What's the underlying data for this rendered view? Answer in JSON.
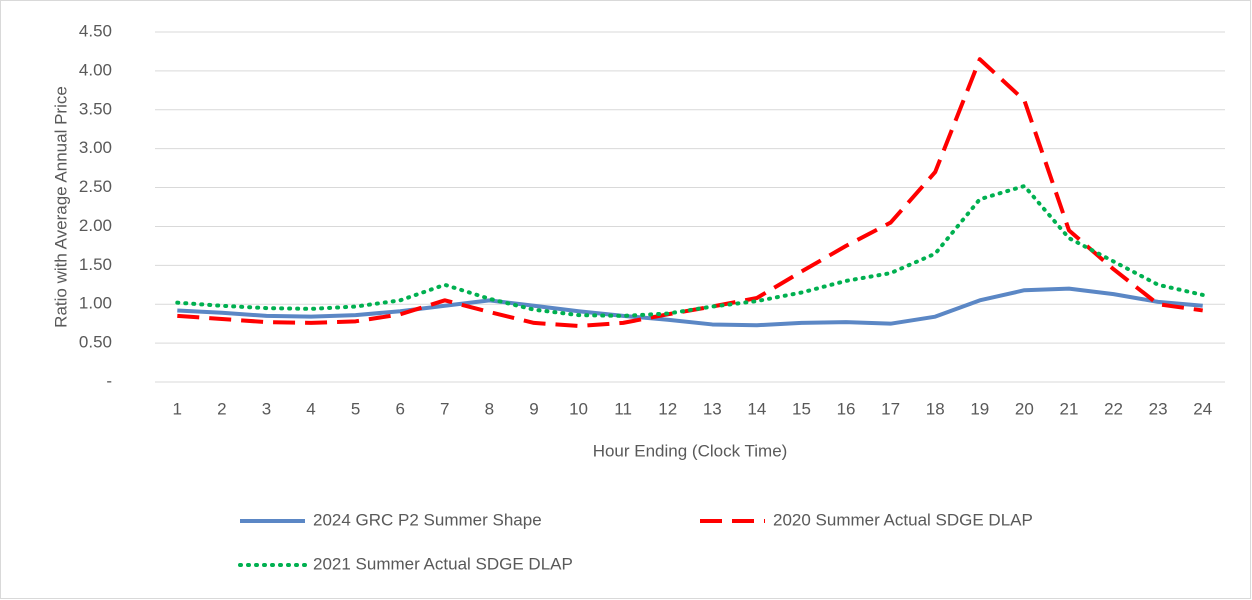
{
  "chart_data": {
    "type": "line",
    "xlabel": "Hour Ending (Clock Time)",
    "ylabel": "Ratio with Average Annual Price",
    "categories": [
      "1",
      "2",
      "3",
      "4",
      "5",
      "6",
      "7",
      "8",
      "9",
      "10",
      "11",
      "12",
      "13",
      "14",
      "15",
      "16",
      "17",
      "18",
      "19",
      "20",
      "21",
      "22",
      "23",
      "24"
    ],
    "ylim": [
      0,
      4.5
    ],
    "yticks": [
      {
        "value": 0,
        "label": "-"
      },
      {
        "value": 0.5,
        "label": "0.50"
      },
      {
        "value": 1,
        "label": "1.00"
      },
      {
        "value": 1.5,
        "label": "1.50"
      },
      {
        "value": 2,
        "label": "2.00"
      },
      {
        "value": 2.5,
        "label": "2.50"
      },
      {
        "value": 3,
        "label": "3.00"
      },
      {
        "value": 3.5,
        "label": "3.50"
      },
      {
        "value": 4,
        "label": "4.00"
      },
      {
        "value": 4.5,
        "label": "4.50"
      }
    ],
    "grid": true,
    "legend": "bottom",
    "series": [
      {
        "name": "2024 GRC P2 Summer Shape",
        "color": "#5b87c5",
        "style": "solid",
        "values": [
          0.92,
          0.89,
          0.85,
          0.84,
          0.86,
          0.91,
          0.98,
          1.05,
          0.98,
          0.91,
          0.85,
          0.8,
          0.74,
          0.73,
          0.76,
          0.77,
          0.75,
          0.84,
          1.05,
          1.18,
          1.2,
          1.13,
          1.03,
          0.98
        ]
      },
      {
        "name": "2020 Summer Actual SDGE DLAP",
        "color": "#ff0000",
        "style": "dashed",
        "values": [
          0.85,
          0.81,
          0.77,
          0.76,
          0.78,
          0.87,
          1.05,
          0.9,
          0.76,
          0.72,
          0.76,
          0.87,
          0.97,
          1.08,
          1.42,
          1.75,
          2.05,
          2.7,
          4.15,
          3.62,
          1.95,
          1.45,
          1.0,
          0.92
        ]
      },
      {
        "name": "2021 Summer Actual SDGE DLAP",
        "color": "#00b050",
        "style": "dotted",
        "values": [
          1.02,
          0.98,
          0.95,
          0.94,
          0.97,
          1.05,
          1.25,
          1.07,
          0.93,
          0.86,
          0.85,
          0.88,
          0.97,
          1.04,
          1.15,
          1.3,
          1.4,
          1.65,
          2.35,
          2.52,
          1.85,
          1.55,
          1.25,
          1.12
        ]
      }
    ]
  }
}
